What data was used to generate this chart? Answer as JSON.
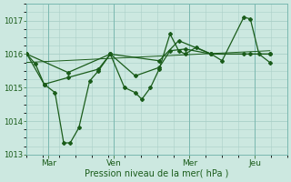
{
  "xlabel": "Pression niveau de la mer( hPa )",
  "background_color": "#cce8e0",
  "grid_color": "#aacfc8",
  "line_color": "#1a5c1a",
  "ylim": [
    1013.0,
    1017.5
  ],
  "yticks": [
    1013,
    1014,
    1015,
    1016,
    1017
  ],
  "xlim": [
    0,
    12
  ],
  "day_labels": [
    "Mar",
    "Ven",
    "Mer",
    "Jeu"
  ],
  "day_positions": [
    1.0,
    4.0,
    7.5,
    10.5
  ],
  "vline_positions": [
    1.0,
    4.0,
    7.5,
    10.5
  ],
  "series1": [
    [
      0.0,
      1016.0
    ],
    [
      0.4,
      1015.7
    ],
    [
      0.8,
      1015.1
    ],
    [
      1.3,
      1014.85
    ],
    [
      1.7,
      1013.35
    ],
    [
      2.0,
      1013.35
    ],
    [
      2.4,
      1013.8
    ],
    [
      2.9,
      1015.2
    ],
    [
      3.3,
      1015.5
    ],
    [
      3.85,
      1016.0
    ],
    [
      4.5,
      1015.0
    ],
    [
      5.0,
      1014.85
    ],
    [
      5.3,
      1014.65
    ],
    [
      5.7,
      1015.0
    ],
    [
      6.1,
      1015.55
    ],
    [
      6.6,
      1016.6
    ],
    [
      7.0,
      1016.1
    ],
    [
      7.3,
      1016.0
    ],
    [
      7.8,
      1016.2
    ],
    [
      8.5,
      1016.0
    ],
    [
      9.0,
      1015.8
    ],
    [
      10.0,
      1017.1
    ],
    [
      10.3,
      1017.05
    ],
    [
      10.7,
      1016.0
    ],
    [
      11.2,
      1015.75
    ]
  ],
  "series2": [
    [
      0.0,
      1016.0
    ],
    [
      0.8,
      1015.1
    ],
    [
      1.9,
      1015.3
    ],
    [
      3.3,
      1015.55
    ],
    [
      3.85,
      1016.0
    ],
    [
      5.0,
      1015.35
    ],
    [
      6.1,
      1015.6
    ],
    [
      6.6,
      1016.1
    ],
    [
      7.3,
      1016.15
    ],
    [
      8.5,
      1016.0
    ],
    [
      10.0,
      1016.0
    ],
    [
      11.2,
      1016.0
    ]
  ],
  "series3": [
    [
      0.0,
      1016.0
    ],
    [
      1.9,
      1015.45
    ],
    [
      3.85,
      1016.0
    ],
    [
      6.1,
      1015.8
    ],
    [
      7.0,
      1016.4
    ],
    [
      8.5,
      1016.0
    ],
    [
      10.3,
      1016.0
    ],
    [
      11.2,
      1016.0
    ]
  ],
  "series4": [
    [
      0.0,
      1015.75
    ],
    [
      11.2,
      1016.1
    ]
  ]
}
